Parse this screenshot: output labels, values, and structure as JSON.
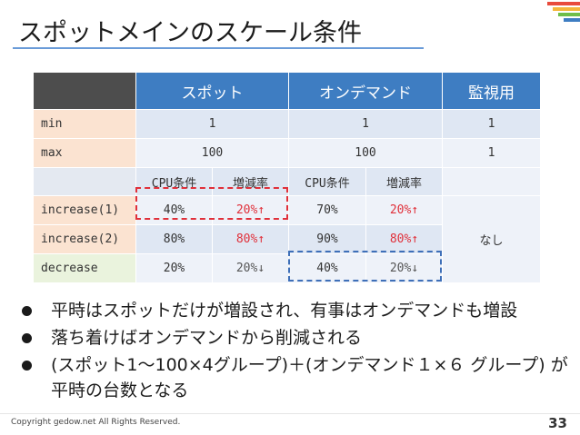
{
  "slide": {
    "title": "スポットメインのスケール条件",
    "page_number": "33",
    "copyright": "Copyright gedow.net All Rights Reserved."
  },
  "table": {
    "headers": {
      "spot": "スポット",
      "ondemand": "オンデマンド",
      "watch": "監視用"
    },
    "min": {
      "label": "min",
      "spot": "1",
      "ondemand": "1",
      "watch": "1"
    },
    "max": {
      "label": "max",
      "spot": "100",
      "ondemand": "100",
      "watch": "1"
    },
    "subheaders": {
      "cpu": "CPU条件",
      "rate": "増減率"
    },
    "increase1": {
      "label": "increase(1)",
      "spot_cpu": "40%",
      "spot_rate": "20%↑",
      "od_cpu": "70%",
      "od_rate": "20%↑"
    },
    "increase2": {
      "label": "increase(2)",
      "spot_cpu": "80%",
      "spot_rate": "80%↑",
      "od_cpu": "90%",
      "od_rate": "80%↑"
    },
    "decrease": {
      "label": "decrease",
      "spot_cpu": "20%",
      "spot_rate": "20%↓",
      "od_cpu": "40%",
      "od_rate": "20%↓"
    },
    "watch_note": "なし"
  },
  "bullets": [
    "平時はスポットだけが増設され、有事はオンデマンドも増設",
    "落ち着けばオンデマンドから削減される",
    "(スポット1～100×4グループ)＋(オンデマンド１×６ グループ) が平時の台数となる"
  ],
  "colors": {
    "header_blue": "#3e7dc2",
    "accent_red": "#e0303a",
    "title_rule": "#6a9bd8"
  }
}
